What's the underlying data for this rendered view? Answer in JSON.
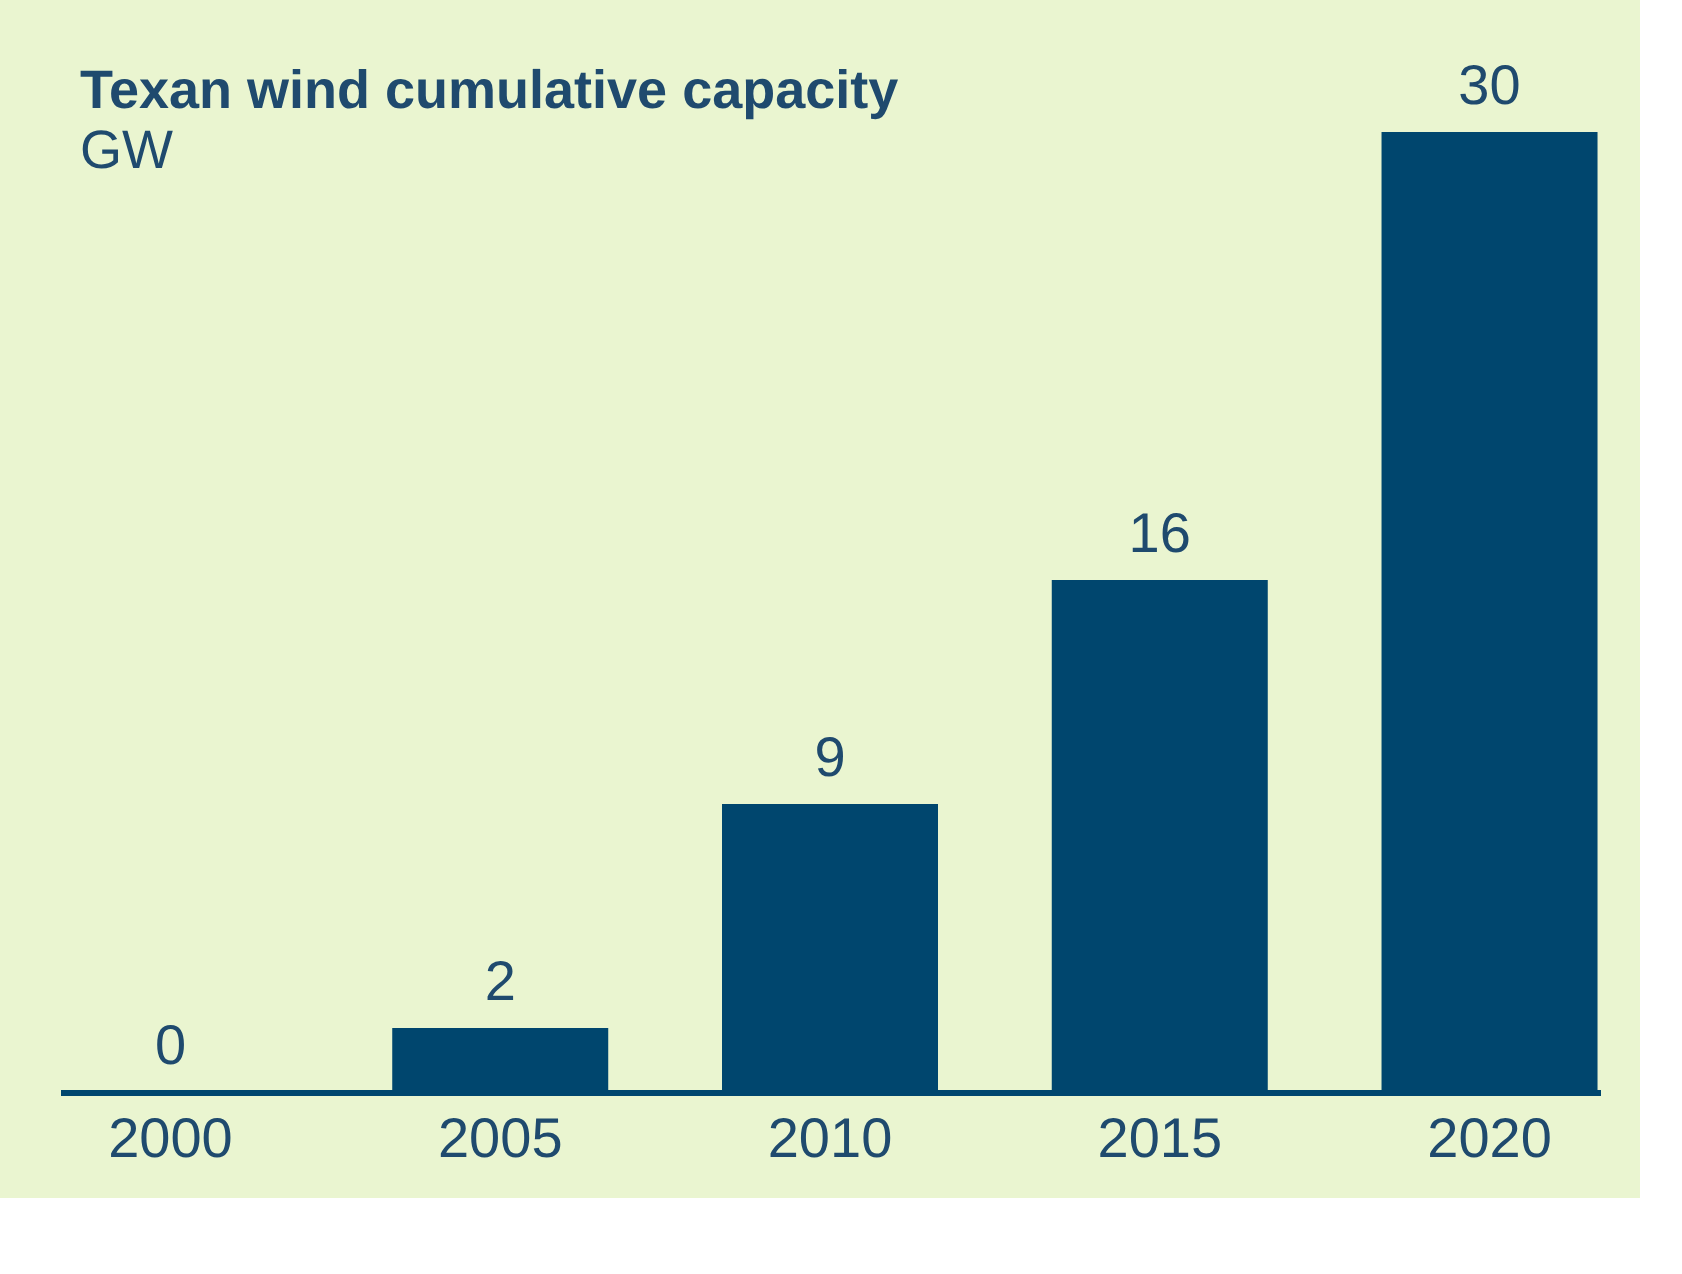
{
  "chart_data": {
    "type": "bar",
    "title": "Texan wind cumulative capacity",
    "subtitle": "GW",
    "categories": [
      "2000",
      "2005",
      "2010",
      "2015",
      "2020"
    ],
    "values": [
      0,
      2,
      9,
      16,
      30
    ],
    "color": "#00466e",
    "data_labels": true
  }
}
